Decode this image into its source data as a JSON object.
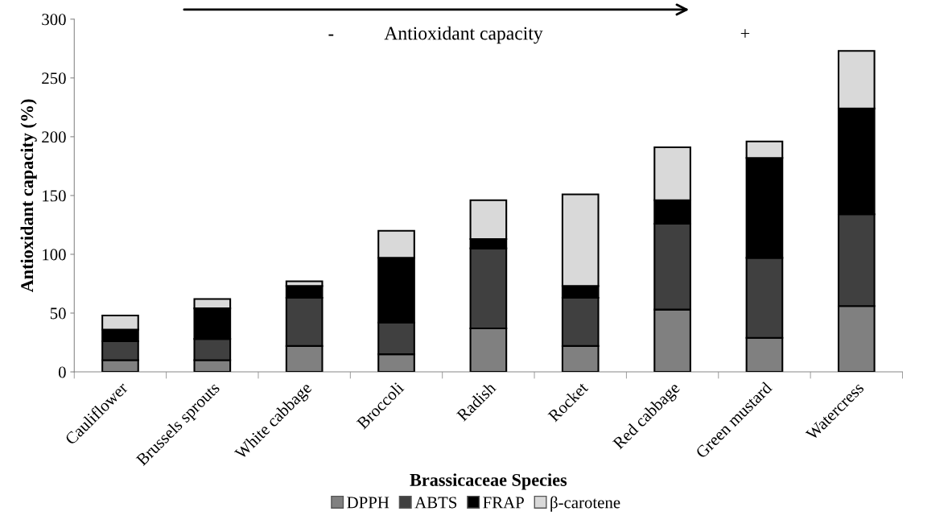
{
  "chart_data": {
    "type": "bar",
    "stacked": true,
    "xlabel": "Brassicaceae Species",
    "ylabel": "Antioxidant capacity (%)",
    "categories": [
      "Cauliflower",
      "Brussels sprouts",
      "White cabbage",
      "Broccoli",
      "Radish",
      "Rocket",
      "Red cabbage",
      "Green mustard",
      "Watercress"
    ],
    "series": [
      {
        "name": "DPPH",
        "color": "#808080",
        "values": [
          10,
          10,
          22,
          15,
          37,
          22,
          53,
          29,
          56
        ]
      },
      {
        "name": "ABTS",
        "color": "#404040",
        "values": [
          16,
          18,
          41,
          27,
          68,
          41,
          73,
          68,
          78
        ]
      },
      {
        "name": "FRAP",
        "color": "#000000",
        "values": [
          10,
          26,
          10,
          55,
          8,
          10,
          20,
          85,
          90
        ]
      },
      {
        "name": "β-carotene",
        "color": "#d9d9d9",
        "values": [
          12,
          8,
          4,
          23,
          33,
          78,
          45,
          14,
          49
        ]
      }
    ],
    "ylim": [
      0,
      300
    ],
    "yticks": [
      0,
      50,
      100,
      150,
      200,
      250,
      300
    ],
    "grid": false,
    "legend": "bottom",
    "annotations": [
      "-",
      "Antioxidant capacity",
      "+"
    ]
  }
}
